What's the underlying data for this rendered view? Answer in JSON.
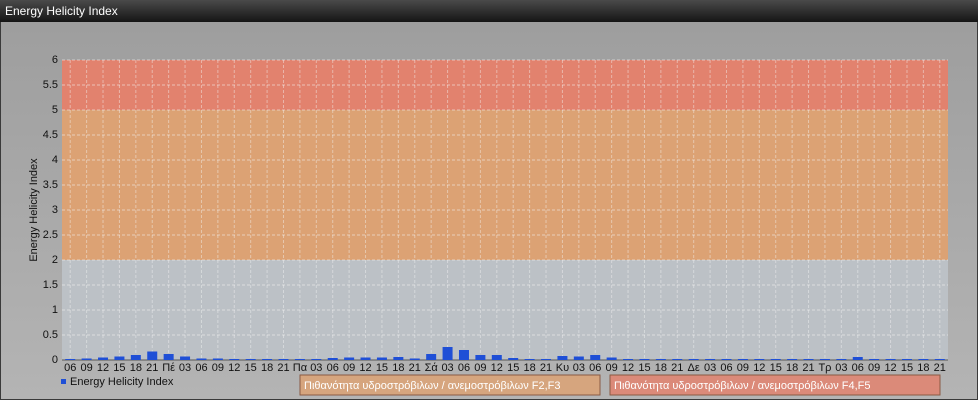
{
  "chart_data": {
    "type": "bar",
    "title": "Energy Helicity Index",
    "ylabel": "Energy Helicity Index",
    "categories": [
      "06",
      "09",
      "12",
      "15",
      "18",
      "21",
      "Πέ",
      "03",
      "06",
      "09",
      "12",
      "15",
      "18",
      "21",
      "Πα",
      "03",
      "06",
      "09",
      "12",
      "15",
      "18",
      "21",
      "Σά",
      "03",
      "06",
      "09",
      "12",
      "15",
      "18",
      "21",
      "Κυ",
      "03",
      "06",
      "09",
      "12",
      "15",
      "18",
      "21",
      "Δε",
      "03",
      "06",
      "09",
      "12",
      "15",
      "18",
      "21",
      "Τρ",
      "03",
      "06",
      "09",
      "12",
      "15",
      "18",
      "21"
    ],
    "series": [
      {
        "name": "Energy Helicity Index",
        "color": "#1f4fd6",
        "values": [
          0.02,
          0.03,
          0.05,
          0.07,
          0.1,
          0.17,
          0.12,
          0.07,
          0.03,
          0.03,
          0.02,
          0.02,
          0.02,
          0.02,
          0.02,
          0.02,
          0.04,
          0.05,
          0.05,
          0.05,
          0.06,
          0.03,
          0.12,
          0.26,
          0.2,
          0.1,
          0.1,
          0.04,
          0.02,
          0.02,
          0.08,
          0.07,
          0.1,
          0.05,
          0.02,
          0.02,
          0.02,
          0.02,
          0.02,
          0.02,
          0.02,
          0.02,
          0.02,
          0.02,
          0.02,
          0.02,
          0.02,
          0.02,
          0.06,
          0.02,
          0.02,
          0.02,
          0.02,
          0.02
        ]
      }
    ],
    "bands": [
      {
        "from": 2,
        "to": 5,
        "color": "#dca274",
        "label": "Πιθανότητα υδροστρόβιλων / ανεμοστρόβιλων F2,F3"
      },
      {
        "from": 5,
        "to": 6,
        "color": "#e2826e",
        "label": "Πιθανότητα υδροστρόβιλων / ανεμοστρόβιλων F4,F5"
      }
    ],
    "ylim": [
      0,
      6
    ],
    "yticks": [
      0,
      0.5,
      1,
      1.5,
      2,
      2.5,
      3,
      3.5,
      4,
      4.5,
      5,
      5.5,
      6
    ],
    "grid": true
  }
}
